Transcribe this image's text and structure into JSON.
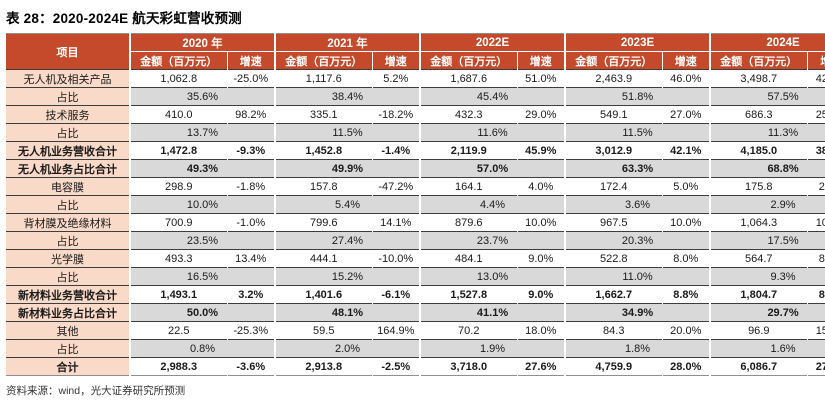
{
  "title": "表 28：2020-2024E 航天彩虹营收预测",
  "source": "资料来源：wind，光大证券研究所预测",
  "colors": {
    "header_bg": "#C44A2B",
    "label_bg": "#F9D9C8",
    "ratio_bg": "#D9D9D9"
  },
  "table": {
    "item_header": "项目",
    "year_headers": [
      "2020 年",
      "2021 年",
      "2022E",
      "2023E",
      "2024E"
    ],
    "sub_headers": {
      "amount": "金额（百万元）",
      "growth": "增速"
    },
    "rows": [
      {
        "label": "无人机及相关产品",
        "type": "data",
        "bold": false,
        "values": [
          [
            "1,062.8",
            "-25.0%"
          ],
          [
            "1,117.6",
            "5.2%"
          ],
          [
            "1,687.6",
            "51.0%"
          ],
          [
            "2,463.9",
            "46.0%"
          ],
          [
            "3,498.7",
            "42.0%"
          ]
        ]
      },
      {
        "label": "占比",
        "type": "ratio",
        "bold": false,
        "values": [
          "35.6%",
          "38.4%",
          "45.4%",
          "51.8%",
          "57.5%"
        ]
      },
      {
        "label": "技术服务",
        "type": "data",
        "bold": false,
        "values": [
          [
            "410.0",
            "98.2%"
          ],
          [
            "335.1",
            "-18.2%"
          ],
          [
            "432.3",
            "29.0%"
          ],
          [
            "549.1",
            "27.0%"
          ],
          [
            "686.3",
            "25.0%"
          ]
        ]
      },
      {
        "label": "占比",
        "type": "ratio",
        "bold": false,
        "values": [
          "13.7%",
          "11.5%",
          "11.6%",
          "11.5%",
          "11.3%"
        ]
      },
      {
        "label": "无人机业务营收合计",
        "type": "data",
        "bold": true,
        "values": [
          [
            "1,472.8",
            "-9.3%"
          ],
          [
            "1,452.8",
            "-1.4%"
          ],
          [
            "2,119.9",
            "45.9%"
          ],
          [
            "3,012.9",
            "42.1%"
          ],
          [
            "4,185.0",
            "38.9%"
          ]
        ]
      },
      {
        "label": "无人机业务占比合计",
        "type": "ratio",
        "bold": true,
        "values": [
          "49.3%",
          "49.9%",
          "57.0%",
          "63.3%",
          "68.8%"
        ]
      },
      {
        "label": "电容膜",
        "type": "data",
        "bold": false,
        "values": [
          [
            "298.9",
            "-1.8%"
          ],
          [
            "157.8",
            "-47.2%"
          ],
          [
            "164.1",
            "4.0%"
          ],
          [
            "172.4",
            "5.0%"
          ],
          [
            "175.8",
            "2.0%"
          ]
        ]
      },
      {
        "label": "占比",
        "type": "ratio",
        "bold": false,
        "values": [
          "10.0%",
          "5.4%",
          "4.4%",
          "3.6%",
          "2.9%"
        ]
      },
      {
        "label": "背材膜及绝缘材料",
        "type": "data",
        "bold": false,
        "values": [
          [
            "700.9",
            "-1.0%"
          ],
          [
            "799.6",
            "14.1%"
          ],
          [
            "879.6",
            "10.0%"
          ],
          [
            "967.5",
            "10.0%"
          ],
          [
            "1,064.3",
            "10.0%"
          ]
        ]
      },
      {
        "label": "占比",
        "type": "ratio",
        "bold": false,
        "values": [
          "23.5%",
          "27.4%",
          "23.7%",
          "20.3%",
          "17.5%"
        ]
      },
      {
        "label": "光学膜",
        "type": "data",
        "bold": false,
        "values": [
          [
            "493.3",
            "13.4%"
          ],
          [
            "444.1",
            "-10.0%"
          ],
          [
            "484.1",
            "9.0%"
          ],
          [
            "522.8",
            "8.0%"
          ],
          [
            "564.7",
            "8.0%"
          ]
        ]
      },
      {
        "label": "占比",
        "type": "ratio",
        "bold": false,
        "values": [
          "16.5%",
          "15.2%",
          "13.0%",
          "11.0%",
          "9.3%"
        ]
      },
      {
        "label": "新材料业务营收合计",
        "type": "data",
        "bold": true,
        "values": [
          [
            "1,493.1",
            "3.2%"
          ],
          [
            "1,401.6",
            "-6.1%"
          ],
          [
            "1,527.8",
            "9.0%"
          ],
          [
            "1,662.7",
            "8.8%"
          ],
          [
            "1,804.7",
            "8.5%"
          ]
        ]
      },
      {
        "label": "新材料业务占比合计",
        "type": "ratio",
        "bold": true,
        "values": [
          "50.0%",
          "48.1%",
          "41.1%",
          "34.9%",
          "29.7%"
        ]
      },
      {
        "label": "其他",
        "type": "data",
        "bold": false,
        "values": [
          [
            "22.5",
            "-25.3%"
          ],
          [
            "59.5",
            "164.9%"
          ],
          [
            "70.2",
            "18.0%"
          ],
          [
            "84.3",
            "20.0%"
          ],
          [
            "96.9",
            "15.0%"
          ]
        ]
      },
      {
        "label": "占比",
        "type": "ratio",
        "bold": false,
        "values": [
          "0.8%",
          "2.0%",
          "1.9%",
          "1.8%",
          "1.6%"
        ]
      },
      {
        "label": "合计",
        "type": "data",
        "bold": true,
        "values": [
          [
            "2,988.3",
            "-3.6%"
          ],
          [
            "2,913.8",
            "-2.5%"
          ],
          [
            "3,718.0",
            "27.6%"
          ],
          [
            "4,759.9",
            "28.0%"
          ],
          [
            "6,086.7",
            "27.9%"
          ]
        ]
      }
    ]
  }
}
